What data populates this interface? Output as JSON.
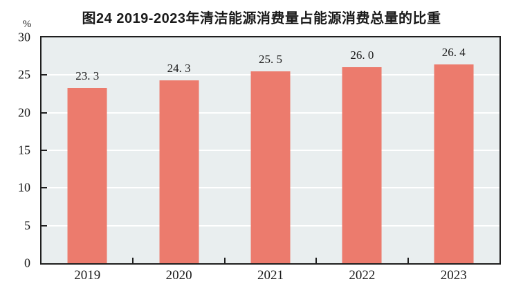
{
  "chart": {
    "title": "图24  2019-2023年清洁能源消费量占能源消费总量的比重",
    "unit_label": "%"
  },
  "chart_data": {
    "type": "bar",
    "title": "图24  2019-2023年清洁能源消费量占能源消费总量的比重",
    "categories": [
      "2019",
      "2020",
      "2021",
      "2022",
      "2023"
    ],
    "values": [
      23.3,
      24.3,
      25.5,
      26.0,
      26.4
    ],
    "value_labels": [
      "23. 3",
      "24. 3",
      "25. 5",
      "26. 0",
      "26. 4"
    ],
    "xlabel": "",
    "ylabel": "%",
    "ylim": [
      0,
      30
    ],
    "yticks": [
      0,
      5,
      10,
      15,
      20,
      25,
      30
    ],
    "grid": "horizontal white gridlines at 5,10,15,20,25",
    "legend": "none",
    "colors": {
      "bar": "#ec7b6d",
      "plot_background": "#e9eeef",
      "axis_frame": "#1f1f1f",
      "gridline": "#ffffff",
      "text": "#1a1a1a",
      "page_background": "#ffffff"
    }
  }
}
